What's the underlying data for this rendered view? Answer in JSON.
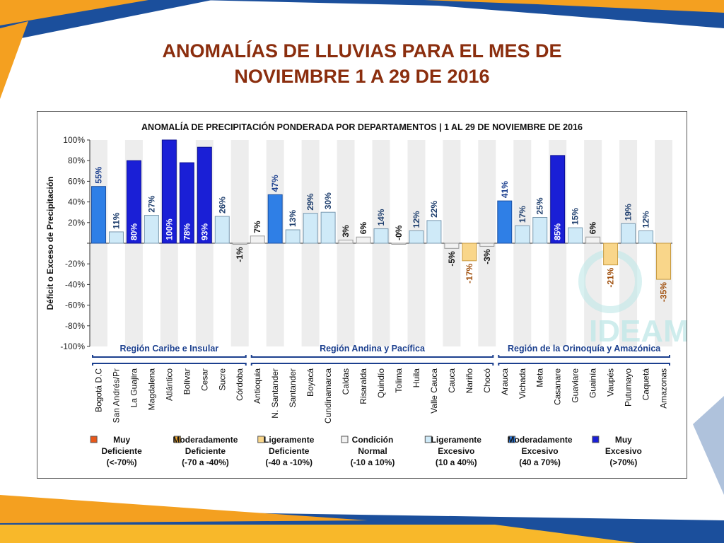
{
  "slide": {
    "title_line1": "ANOMALÍAS DE LLUVIAS PARA EL MES DE",
    "title_line2": "NOVIEMBRE 1 A 29 DE 2016"
  },
  "chart_data": {
    "type": "bar",
    "title": "ANOMALÍA DE PRECIPITACIÓN PONDERADA POR DEPARTAMENTOS | 1 AL 29 DE NOVIEMBRE DE 2016",
    "ylabel": "Déficit o Exceso de Precipitación",
    "xlabel": "",
    "ylim": [
      -100,
      100
    ],
    "yticks": [
      "100%",
      "80%",
      "60%",
      "40%",
      "20%",
      "",
      "-20%",
      "-40%",
      "-60%",
      "-80%",
      "-100%"
    ],
    "grid": false,
    "categories": [
      "Bogotá D.C",
      "San Andrés/Pr",
      "La Guajira",
      "Magdalena",
      "Atlántico",
      "Bolívar",
      "Cesar",
      "Sucre",
      "Córdoba",
      "Antioquia",
      "N. Santander",
      "Santander",
      "Boyacá",
      "Cundinamarca",
      "Caldas",
      "Risaralda",
      "Quindío",
      "Tolima",
      "Huila",
      "Valle Cauca",
      "Cauca",
      "Nariño",
      "Chocó",
      "Arauca",
      "Vichada",
      "Meta",
      "Casanare",
      "Guaviare",
      "Guainía",
      "Vaupés",
      "Putumayo",
      "Caquetá",
      "Amazonas"
    ],
    "values": [
      55,
      11,
      80,
      27,
      100,
      78,
      93,
      26,
      -1,
      7,
      47,
      13,
      29,
      30,
      3,
      6,
      14,
      0,
      12,
      22,
      -5,
      -17,
      -3,
      41,
      17,
      25,
      85,
      15,
      6,
      -21,
      19,
      12,
      -35
    ],
    "value_labels": [
      "55%",
      "11%",
      "80%",
      "27%",
      "100%",
      "78%",
      "93%",
      "26%",
      "-1%",
      "7%",
      "47%",
      "13%",
      "29%",
      "30%",
      "3%",
      "6%",
      "14%",
      "-0%",
      "12%",
      "22%",
      "-5%",
      "-17%",
      "-3%",
      "41%",
      "17%",
      "25%",
      "85%",
      "15%",
      "6%",
      "-21%",
      "19%",
      "12%",
      "-35%"
    ],
    "categories_class": [
      "ME",
      "LE",
      "MUY",
      "LE",
      "MUY",
      "MUY",
      "MUY",
      "LE",
      "N",
      "N",
      "ME",
      "LE",
      "LE",
      "LE",
      "N",
      "N",
      "LE",
      "N",
      "LE",
      "LE",
      "N",
      "LD",
      "N",
      "ME",
      "LE",
      "LE",
      "MUY",
      "LE",
      "N",
      "LD",
      "LE",
      "LE",
      "LD"
    ],
    "regions": [
      {
        "name": "Región Caribe e Insular",
        "start": 0,
        "end": 8
      },
      {
        "name": "Región Andina  y Pacífica",
        "start": 9,
        "end": 22
      },
      {
        "name": "Región de la Orinoquía y Amazónica",
        "start": 23,
        "end": 32
      }
    ],
    "legend": {
      "placement": "bottom",
      "items": [
        {
          "key": "MD",
          "lines": [
            "Muy",
            "Deficiente",
            "(<-70%)"
          ],
          "color": "#E8581A"
        },
        {
          "key": "MOD",
          "lines": [
            "Moderadamente",
            "Deficiente",
            "(-70 a -40%)"
          ],
          "color": "#F0A830"
        },
        {
          "key": "LD",
          "lines": [
            "Ligeramente",
            "Deficiente",
            "(-40 a -10%)"
          ],
          "color": "#F9D68A"
        },
        {
          "key": "N",
          "lines": [
            "Condición",
            "Normal",
            "(-10 a 10%)"
          ],
          "color": "#F2F2F2"
        },
        {
          "key": "LE",
          "lines": [
            "Ligeramente",
            "Excesivo",
            "(10 a 40%)"
          ],
          "color": "#CFEAF8"
        },
        {
          "key": "ME",
          "lines": [
            "Moderadamente",
            "Excesivo",
            "(40 a 70%)"
          ],
          "color": "#2F7FE6"
        },
        {
          "key": "MUY",
          "lines": [
            "Muy",
            "Excesivo",
            "(>70%)"
          ],
          "color": "#1A1FD6"
        }
      ]
    },
    "watermark": "IDEAM"
  }
}
